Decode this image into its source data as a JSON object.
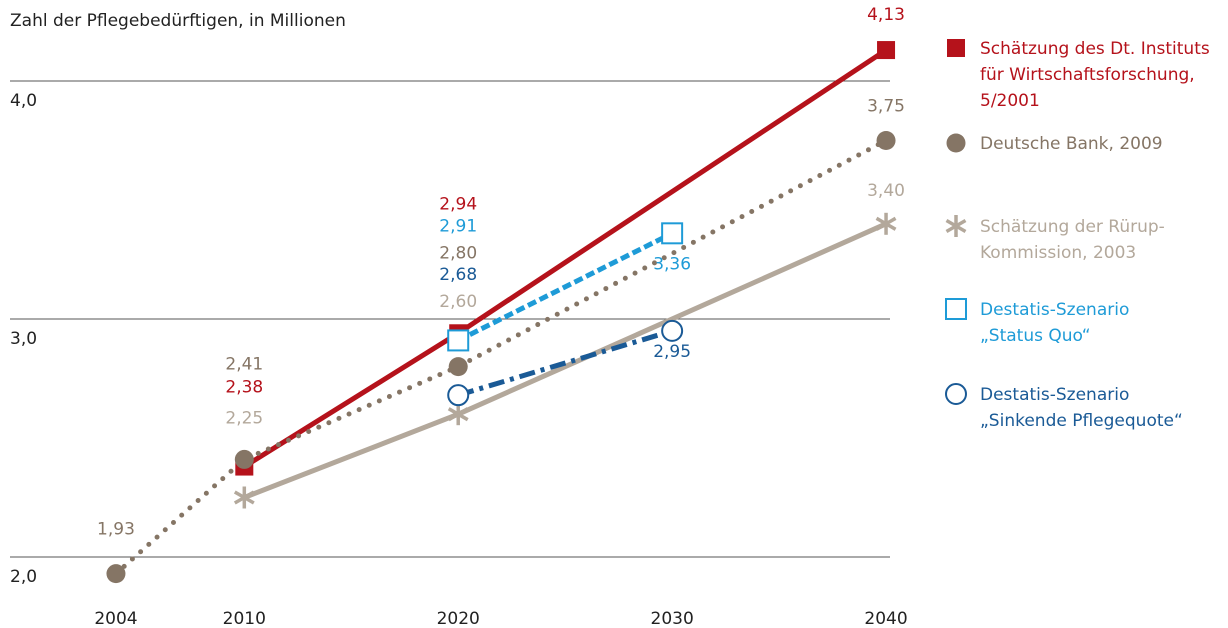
{
  "chart_data": {
    "type": "line",
    "y_axis_label": "Zahl der Pflegebedürftigen, in Millionen",
    "xlim": [
      2000,
      2045
    ],
    "xticks": [
      2004,
      2010,
      2020,
      2030,
      2040
    ],
    "ylim": [
      1.85,
      4.2
    ],
    "yticks": [
      {
        "value": 2.0,
        "label": "2,0"
      },
      {
        "value": 3.0,
        "label": "3,0"
      },
      {
        "value": 4.0,
        "label": "4,0"
      }
    ],
    "grid": true,
    "legend": "right",
    "series": [
      {
        "name": "Schätzung des Dt. Instituts\nfür Wirtschaftsforschung,\n5/2001",
        "color": "#b5121b",
        "line": "solid",
        "marker": "square",
        "x": [
          2010,
          2020,
          2040
        ],
        "values": [
          2.38,
          2.94,
          4.13
        ],
        "value_labels": [
          "2,38",
          "2,94",
          "4,13"
        ]
      },
      {
        "name": "Deutsche Bank, 2009",
        "color": "#857565",
        "line": "dotted",
        "marker": "circle",
        "x": [
          2004,
          2010,
          2020,
          2040
        ],
        "values": [
          1.93,
          2.41,
          2.8,
          3.75
        ],
        "value_labels": [
          "1,93",
          "2,41",
          "2,80",
          "3,75"
        ]
      },
      {
        "name": "Schätzung der Rürup-\nKommission, 2003",
        "color": "#b3a89b",
        "line": "solid",
        "marker": "asterisk",
        "x": [
          2010,
          2020,
          2040
        ],
        "values": [
          2.25,
          2.6,
          3.4
        ],
        "value_labels": [
          "2,25",
          "2,60",
          "3,40"
        ]
      },
      {
        "name": "Destatis-Szenario\n„Status Quo“",
        "color": "#1e9bd7",
        "line": "dashed",
        "marker": "open-square",
        "x": [
          2020,
          2030
        ],
        "values": [
          2.91,
          3.36
        ],
        "value_labels": [
          "2,91",
          "3,36"
        ]
      },
      {
        "name": "Destatis-Szenario\n„Sinkende Pflegequote“",
        "color": "#1a5a96",
        "line": "dashdot",
        "marker": "open-circle",
        "x": [
          2020,
          2030
        ],
        "values": [
          2.68,
          2.95
        ],
        "value_labels": [
          "2,68",
          "2,95"
        ]
      }
    ]
  }
}
